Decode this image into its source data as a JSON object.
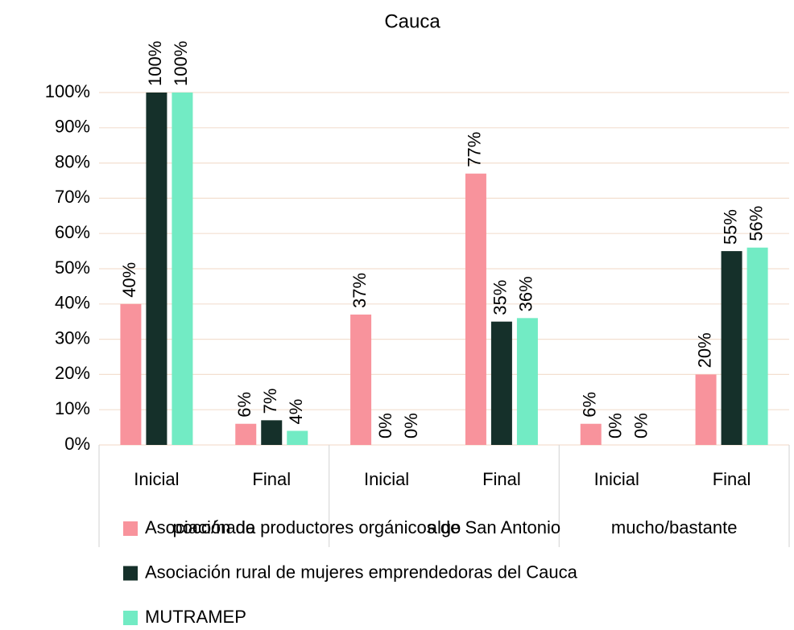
{
  "chart_data": {
    "type": "bar",
    "title": "Cauca",
    "categories": [
      "Inicial",
      "Final",
      "Inicial",
      "Final",
      "Inicial",
      "Final"
    ],
    "groups": [
      "poco/nada",
      "algo",
      "mucho/bastante"
    ],
    "series": [
      {
        "name": "Asociación de productores orgánicos de San Antonio",
        "color": "#f8939c",
        "values": [
          40,
          6,
          37,
          77,
          6,
          20
        ],
        "value_labels": [
          "40%",
          "6%",
          "37%",
          "77%",
          "6%",
          "20%"
        ]
      },
      {
        "name": "Asociación rural de mujeres emprendedoras del Cauca",
        "color": "#15302a",
        "values": [
          100,
          7,
          0,
          35,
          0,
          55
        ],
        "value_labels": [
          "100%",
          "7%",
          "0%",
          "35%",
          "0%",
          "55%"
        ]
      },
      {
        "name": "MUTRAMEP",
        "color": "#72ebc4",
        "values": [
          100,
          4,
          0,
          36,
          0,
          56
        ],
        "value_labels": [
          "100%",
          "4%",
          "0%",
          "36%",
          "0%",
          "56%"
        ]
      }
    ],
    "ylim": [
      0,
      100
    ],
    "yticks": [
      {
        "value": 0,
        "label": "0%"
      },
      {
        "value": 10,
        "label": "10%"
      },
      {
        "value": 20,
        "label": "20%"
      },
      {
        "value": 30,
        "label": "30%"
      },
      {
        "value": 40,
        "label": "40%"
      },
      {
        "value": 50,
        "label": "50%"
      },
      {
        "value": 60,
        "label": "60%"
      },
      {
        "value": 70,
        "label": "70%"
      },
      {
        "value": 80,
        "label": "80%"
      },
      {
        "value": 90,
        "label": "90%"
      },
      {
        "value": 100,
        "label": "100%"
      }
    ],
    "grid": true
  }
}
